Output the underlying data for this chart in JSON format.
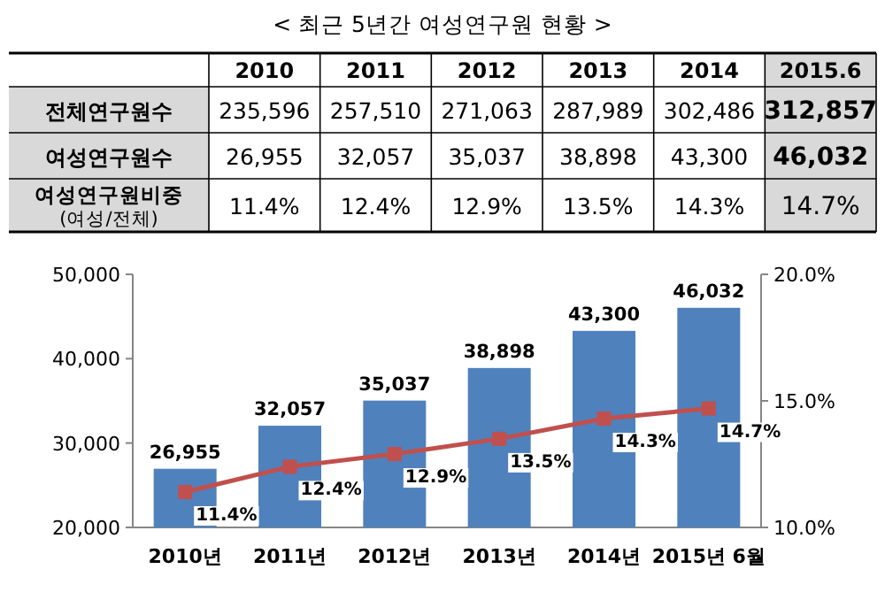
{
  "chart_data": [
    {
      "type": "heatmap",
      "title": "< 최근 5년간 여성연구원 현황 >",
      "categories": [
        "2010",
        "2011",
        "2012",
        "2013",
        "2014",
        "2015.6"
      ],
      "y_categories": [
        "전체연구원수",
        "여성연구원수",
        "여성연구원비중 (여성/전체)"
      ],
      "cells": [
        [
          235596,
          257510,
          271063,
          287989,
          302486,
          312857
        ],
        [
          26955,
          32057,
          35037,
          38898,
          43300,
          46032
        ],
        [
          11.4,
          12.4,
          12.9,
          13.5,
          14.3,
          14.7
        ]
      ],
      "cell_labels": [
        [
          "235,596",
          "257,510",
          "271,063",
          "287,989",
          "302,486",
          "312,857"
        ],
        [
          "26,955",
          "32,057",
          "35,037",
          "38,898",
          "43,300",
          "46,032"
        ],
        [
          "11.4%",
          "12.4%",
          "12.9%",
          "13.5%",
          "14.3%",
          "14.7%"
        ]
      ]
    },
    {
      "type": "bar",
      "categories": [
        "2010년",
        "2011년",
        "2012년",
        "2013년",
        "2014년",
        "2015년 6월"
      ],
      "ylim": [
        20000,
        50000
      ],
      "yticks": [
        {
          "value": 20000,
          "label": "20,000"
        },
        {
          "value": 30000,
          "label": "30,000"
        },
        {
          "value": 40000,
          "label": "40,000"
        },
        {
          "value": 50000,
          "label": "50,000"
        }
      ],
      "y2lim": [
        10,
        20
      ],
      "y2ticks": [
        {
          "value": 10,
          "label": "10.0%"
        },
        {
          "value": 15,
          "label": "15.0%"
        },
        {
          "value": 20,
          "label": "20.0%"
        }
      ],
      "series": [
        {
          "type": "bar",
          "color": "#4f81bd",
          "values": [
            26955,
            32057,
            35037,
            38898,
            43300,
            46032
          ],
          "value_labels": [
            "26,955",
            "32,057",
            "35,037",
            "38,898",
            "43,300",
            "46,032"
          ]
        },
        {
          "type": "line",
          "axis": "y2",
          "color": "#c0504d",
          "marker": "square",
          "values": [
            11.4,
            12.4,
            12.9,
            13.5,
            14.3,
            14.7
          ],
          "value_labels": [
            "11.4%",
            "12.4%",
            "12.9%",
            "13.5%",
            "14.3%",
            "14.7%"
          ]
        }
      ]
    }
  ]
}
